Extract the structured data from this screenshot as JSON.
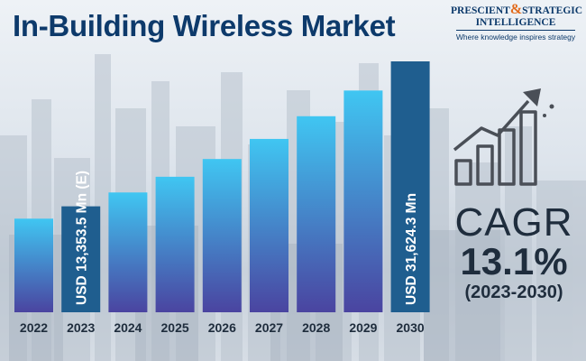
{
  "title": "In-Building Wireless Market",
  "logo": {
    "line1_a": "PRESCIENT",
    "line1_amp": "&",
    "line1_b": "STRATEGIC",
    "line2": "INTELLIGENCE",
    "tagline": "Where knowledge inspires strategy"
  },
  "cagr": {
    "label": "CAGR",
    "value": "13.1%",
    "period": "(2023-2030)"
  },
  "icons": [
    "growth-chart-icon"
  ],
  "colors": {
    "bar_top": "#40c6f2",
    "bar_bottom": "#4a44a0",
    "highlight_bar": "#1f5e8f",
    "text_dark": "#1f2d3d",
    "title": "#0d3a6b"
  },
  "chart_data": {
    "type": "bar",
    "categories": [
      "2022",
      "2023",
      "2024",
      "2025",
      "2026",
      "2027",
      "2028",
      "2029",
      "2030"
    ],
    "values": [
      11800,
      13353.5,
      15100,
      17080,
      19320,
      21850,
      24710,
      27950,
      31624.3
    ],
    "highlight": [
      false,
      true,
      false,
      false,
      false,
      false,
      false,
      false,
      true
    ],
    "data_labels": [
      "",
      "USD 13,353.5 Mn (E)",
      "",
      "",
      "",
      "",
      "",
      "",
      "USD 31,624.3 Mn"
    ],
    "ylim": [
      0,
      31624.3
    ],
    "grid": false
  }
}
